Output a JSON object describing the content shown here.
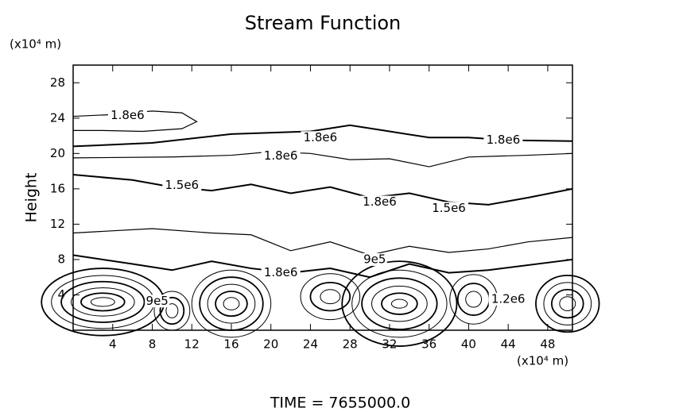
{
  "chart_data": {
    "type": "contour",
    "title": "Stream Function",
    "xlabel_unit": "(x10⁴ m)",
    "ylabel": "Height",
    "ylabel_unit": "(x10⁴ m)",
    "footer": "TIME  =  7655000.0",
    "xlim": [
      0,
      50.5
    ],
    "ylim": [
      0,
      30
    ],
    "xticks": [
      4,
      8,
      12,
      16,
      20,
      24,
      28,
      32,
      36,
      40,
      44,
      48
    ],
    "yticks": [
      4,
      8,
      12,
      16,
      20,
      24,
      28
    ],
    "color": "#000000",
    "contours": [
      {
        "x": [
          0,
          4,
          8,
          11,
          12.5,
          11,
          7,
          3,
          0
        ],
        "y": [
          24.2,
          24.4,
          24.8,
          24.6,
          23.6,
          22.8,
          22.5,
          22.6,
          22.6
        ]
      },
      {
        "x": [
          0,
          8,
          16,
          24,
          28,
          32,
          36,
          40,
          44,
          50.5
        ],
        "y": [
          20.8,
          21.2,
          22.2,
          22.5,
          23.2,
          22.5,
          21.8,
          21.8,
          21.5,
          21.4
        ]
      },
      {
        "x": [
          0,
          10,
          16,
          20,
          24,
          28,
          32,
          36,
          40,
          46,
          50.5
        ],
        "y": [
          19.5,
          19.6,
          19.8,
          20.2,
          20,
          19.3,
          19.4,
          18.5,
          19.6,
          19.8,
          20
        ]
      },
      {
        "x": [
          0,
          6,
          10,
          14,
          18,
          22,
          26,
          30,
          34,
          38,
          42,
          46,
          50.5
        ],
        "y": [
          17.6,
          17,
          16.2,
          15.8,
          16.5,
          15.5,
          16.2,
          15,
          15.5,
          14.5,
          14.2,
          15,
          16
        ]
      },
      {
        "x": [
          0,
          8,
          14,
          18,
          22,
          26,
          30,
          34,
          38,
          42,
          46,
          50.5
        ],
        "y": [
          11,
          11.5,
          11,
          10.8,
          9,
          10,
          8.5,
          9.5,
          8.8,
          9.2,
          10,
          10.5
        ]
      },
      {
        "x": [
          0,
          6,
          10,
          14,
          18,
          22,
          26,
          30,
          34,
          38,
          42,
          50.5
        ],
        "y": [
          8.5,
          7.5,
          6.8,
          7.8,
          7,
          6.5,
          7,
          6,
          7.5,
          6.5,
          6.8,
          8
        ]
      }
    ],
    "eddies": [
      {
        "x": 3,
        "y": 3.2,
        "rx": [
          1.2,
          2.2,
          3.2,
          4.2,
          5.2,
          6.2
        ],
        "ry": [
          0.5,
          1,
          1.6,
          2.3,
          3,
          3.8
        ]
      },
      {
        "x": 16,
        "y": 3,
        "rx": [
          0.8,
          1.6,
          2.4,
          3.2,
          4
        ],
        "ry": [
          0.7,
          1.4,
          2.2,
          3,
          3.8
        ]
      },
      {
        "x": 33,
        "y": 3,
        "rx": [
          0.8,
          1.8,
          2.8,
          3.8,
          4.8,
          5.8
        ],
        "ry": [
          0.5,
          1.2,
          2,
          2.9,
          3.8,
          4.8
        ]
      },
      {
        "x": 50,
        "y": 3,
        "rx": [
          0.8,
          1.6,
          2.4,
          3.2
        ],
        "ry": [
          0.8,
          1.6,
          2.4,
          3.2
        ]
      },
      {
        "x": 10,
        "y": 2.2,
        "rx": [
          0.6,
          1.2,
          1.8
        ],
        "ry": [
          0.8,
          1.5,
          2.2
        ]
      },
      {
        "x": 26,
        "y": 3.8,
        "rx": [
          1,
          2,
          3
        ],
        "ry": [
          0.8,
          1.6,
          2.6
        ]
      },
      {
        "x": 40.5,
        "y": 3.5,
        "rx": [
          0.8,
          1.6,
          2.4
        ],
        "ry": [
          0.9,
          1.8,
          2.8
        ]
      }
    ],
    "annotations": [
      {
        "text": "1.8e6",
        "x": 5.5,
        "y": 24.3
      },
      {
        "text": "1.8e6",
        "x": 25,
        "y": 21.8
      },
      {
        "text": "1.8e6",
        "x": 21,
        "y": 19.7
      },
      {
        "text": "1.8e6",
        "x": 43.5,
        "y": 21.5
      },
      {
        "text": "1.5e6",
        "x": 11,
        "y": 16.4
      },
      {
        "text": "1.8e6",
        "x": 31,
        "y": 14.5
      },
      {
        "text": "1.5e6",
        "x": 38,
        "y": 13.8
      },
      {
        "text": "1.8e6",
        "x": 21,
        "y": 6.5
      },
      {
        "text": "9e5",
        "x": 30.5,
        "y": 8
      },
      {
        "text": "9e5",
        "x": 8.5,
        "y": 3.3
      },
      {
        "text": "1.2e6",
        "x": 44,
        "y": 3.5
      }
    ]
  }
}
